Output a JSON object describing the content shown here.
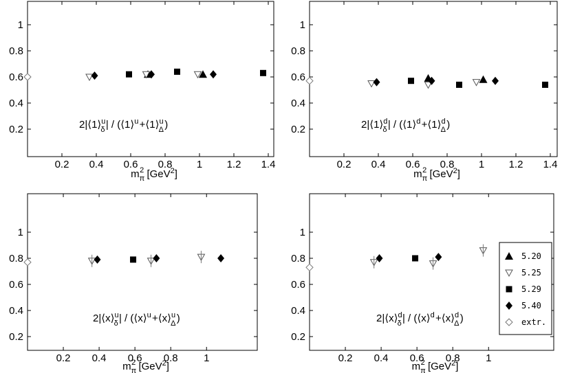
{
  "chart_data": [
    {
      "type": "scatter",
      "xlabel": "m_π² [GeV²]",
      "annotation": {
        "num": "2|⟨1⟩_δ^u|",
        "den": "(⟨1⟩^u+⟨1⟩_Δ^u)"
      },
      "xlim": [
        0,
        1.45
      ],
      "ylim": [
        0,
        1.05
      ],
      "xticks": [
        "0.2",
        "0.4",
        "0.6",
        "0.8",
        "1",
        "1.2",
        "1.4"
      ],
      "yticks": [
        "0.2",
        "0.4",
        "0.6",
        "0.8",
        "1"
      ],
      "series": [
        {
          "name": "5.20",
          "marker": "triangle",
          "points": [
            [
              0.7,
              0.62
            ],
            [
              1.02,
              0.62
            ]
          ]
        },
        {
          "name": "5.25",
          "marker": "triangle-down-open",
          "points": [
            [
              0.36,
              0.6
            ],
            [
              0.69,
              0.62
            ],
            [
              0.99,
              0.62
            ]
          ]
        },
        {
          "name": "5.29",
          "marker": "square",
          "points": [
            [
              0.59,
              0.62
            ],
            [
              0.87,
              0.64
            ],
            [
              1.37,
              0.63
            ]
          ]
        },
        {
          "name": "5.40",
          "marker": "diamond",
          "points": [
            [
              0.39,
              0.61
            ],
            [
              0.72,
              0.62
            ],
            [
              1.08,
              0.62
            ]
          ]
        },
        {
          "name": "extr.",
          "marker": "diamond-open",
          "points": [
            [
              0.0,
              0.6
            ]
          ]
        }
      ]
    },
    {
      "type": "scatter",
      "xlabel": "m_π² [GeV²]",
      "annotation": {
        "num": "2|⟨1⟩_δ^d|",
        "den": "(⟨1⟩^d+⟨1⟩_Δ^d)"
      },
      "xlim": [
        0,
        1.45
      ],
      "ylim": [
        0,
        1.05
      ],
      "xticks": [
        "0.2",
        "0.4",
        "0.6",
        "0.8",
        "1",
        "1.2",
        "1.4"
      ],
      "yticks": [
        "0.2",
        "0.4",
        "0.6",
        "0.8",
        "1"
      ],
      "series": [
        {
          "name": "5.20",
          "marker": "triangle",
          "points": [
            [
              0.69,
              0.59
            ],
            [
              1.01,
              0.58
            ]
          ]
        },
        {
          "name": "5.25",
          "marker": "triangle-down-open",
          "points": [
            [
              0.36,
              0.55
            ],
            [
              0.69,
              0.54
            ],
            [
              0.97,
              0.56
            ]
          ]
        },
        {
          "name": "5.29",
          "marker": "square",
          "points": [
            [
              0.59,
              0.57
            ],
            [
              0.87,
              0.54
            ],
            [
              1.37,
              0.54
            ]
          ]
        },
        {
          "name": "5.40",
          "marker": "diamond",
          "points": [
            [
              0.39,
              0.56
            ],
            [
              0.71,
              0.57
            ],
            [
              1.08,
              0.57
            ]
          ]
        },
        {
          "name": "extr.",
          "marker": "diamond-open",
          "points": [
            [
              0.0,
              0.57
            ]
          ]
        }
      ]
    },
    {
      "type": "scatter",
      "xlabel": "m_π² [GeV²]",
      "annotation": {
        "num": "2|⟨x⟩_δ^u|",
        "den": "(⟨x⟩^u+⟨x⟩_Δ^u)"
      },
      "xlim": [
        0,
        1.15
      ],
      "ylim": [
        0,
        1.05
      ],
      "xticks": [
        "0.2",
        "0.4",
        "0.6",
        "0.8",
        "1"
      ],
      "yticks": [
        "0.2",
        "0.4",
        "0.6",
        "0.8",
        "1"
      ],
      "series": [
        {
          "name": "5.20",
          "marker": "triangle",
          "points": []
        },
        {
          "name": "5.25",
          "marker": "triangle-down-open",
          "points": [
            [
              0.36,
              0.78
            ],
            [
              0.69,
              0.78
            ],
            [
              0.97,
              0.81
            ]
          ]
        },
        {
          "name": "5.29",
          "marker": "square",
          "points": [
            [
              0.59,
              0.79
            ]
          ]
        },
        {
          "name": "5.40",
          "marker": "diamond",
          "points": [
            [
              0.39,
              0.79
            ],
            [
              0.72,
              0.8
            ],
            [
              1.08,
              0.8
            ]
          ]
        },
        {
          "name": "extr.",
          "marker": "diamond-open",
          "points": [
            [
              0.0,
              0.77
            ]
          ]
        }
      ]
    },
    {
      "type": "scatter",
      "xlabel": "m_π² [GeV²]",
      "annotation": {
        "num": "2|⟨x⟩_δ^d|",
        "den": "(⟨x⟩^d+⟨x⟩_Δ^d)"
      },
      "xlim": [
        0,
        1.15
      ],
      "ylim": [
        0,
        1.05
      ],
      "xticks": [
        "0.2",
        "0.4",
        "0.6",
        "0.8",
        "1"
      ],
      "yticks": [
        "0.2",
        "0.4",
        "0.6",
        "0.8",
        "1"
      ],
      "legend": {
        "placement": "bottom-right",
        "entries": [
          "5.20",
          "5.25",
          "5.29",
          "5.40",
          "extr."
        ]
      },
      "series": [
        {
          "name": "5.20",
          "marker": "triangle",
          "points": []
        },
        {
          "name": "5.25",
          "marker": "triangle-down-open",
          "points": [
            [
              0.36,
              0.77
            ],
            [
              0.69,
              0.76
            ],
            [
              0.97,
              0.86
            ]
          ]
        },
        {
          "name": "5.29",
          "marker": "square",
          "points": [
            [
              0.59,
              0.8
            ]
          ]
        },
        {
          "name": "5.40",
          "marker": "diamond",
          "points": [
            [
              0.39,
              0.8
            ],
            [
              0.72,
              0.81
            ],
            [
              1.08,
              0.84
            ]
          ]
        },
        {
          "name": "extr.",
          "marker": "diamond-open",
          "points": [
            [
              0.0,
              0.73
            ]
          ]
        }
      ]
    }
  ]
}
